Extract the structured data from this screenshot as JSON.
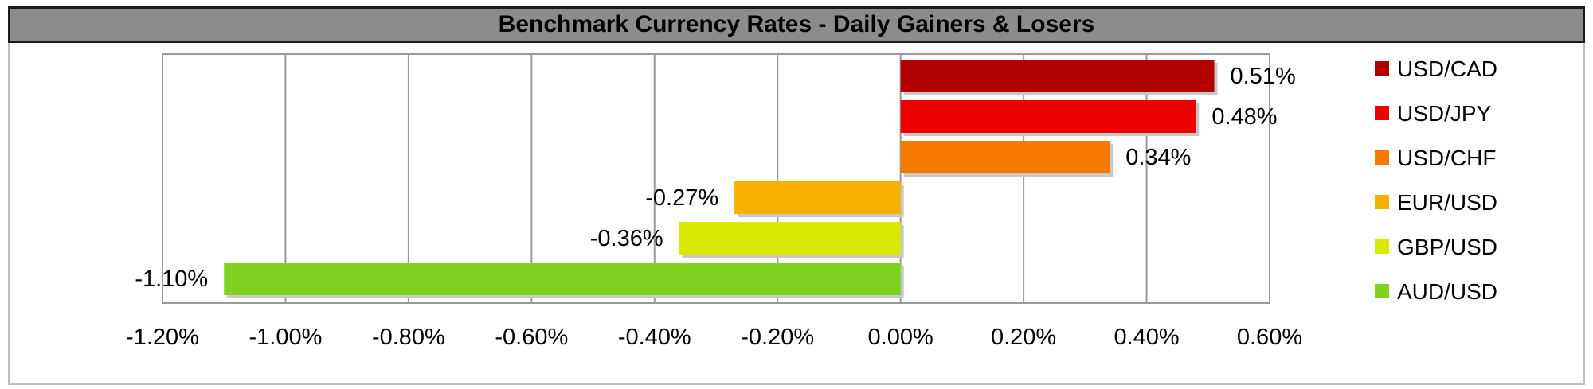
{
  "title": "Benchmark Currency Rates - Daily Gainers & Losers",
  "chart_data": {
    "type": "bar",
    "orientation": "horizontal",
    "title": "Benchmark Currency Rates - Daily Gainers & Losers",
    "xlim": [
      -1.2,
      0.6
    ],
    "x_tick_step": 0.2,
    "x_tick_labels": [
      "-1.20%",
      "-1.00%",
      "-0.80%",
      "-0.60%",
      "-0.40%",
      "-0.20%",
      "0.00%",
      "0.20%",
      "0.40%",
      "0.60%"
    ],
    "grid": "vertical",
    "legend_position": "right",
    "series": [
      {
        "name": "USD/CAD",
        "value": 0.51,
        "label": "0.51%",
        "color": "#b10000"
      },
      {
        "name": "USD/JPY",
        "value": 0.48,
        "label": "0.48%",
        "color": "#ee0000"
      },
      {
        "name": "USD/CHF",
        "value": 0.34,
        "label": "0.34%",
        "color": "#f57c00"
      },
      {
        "name": "EUR/USD",
        "value": -0.27,
        "label": "-0.27%",
        "color": "#f5b000"
      },
      {
        "name": "GBP/USD",
        "value": -0.36,
        "label": "-0.36%",
        "color": "#d9ea00"
      },
      {
        "name": "AUD/USD",
        "value": -1.1,
        "label": "-1.10%",
        "color": "#7ed321"
      }
    ]
  }
}
